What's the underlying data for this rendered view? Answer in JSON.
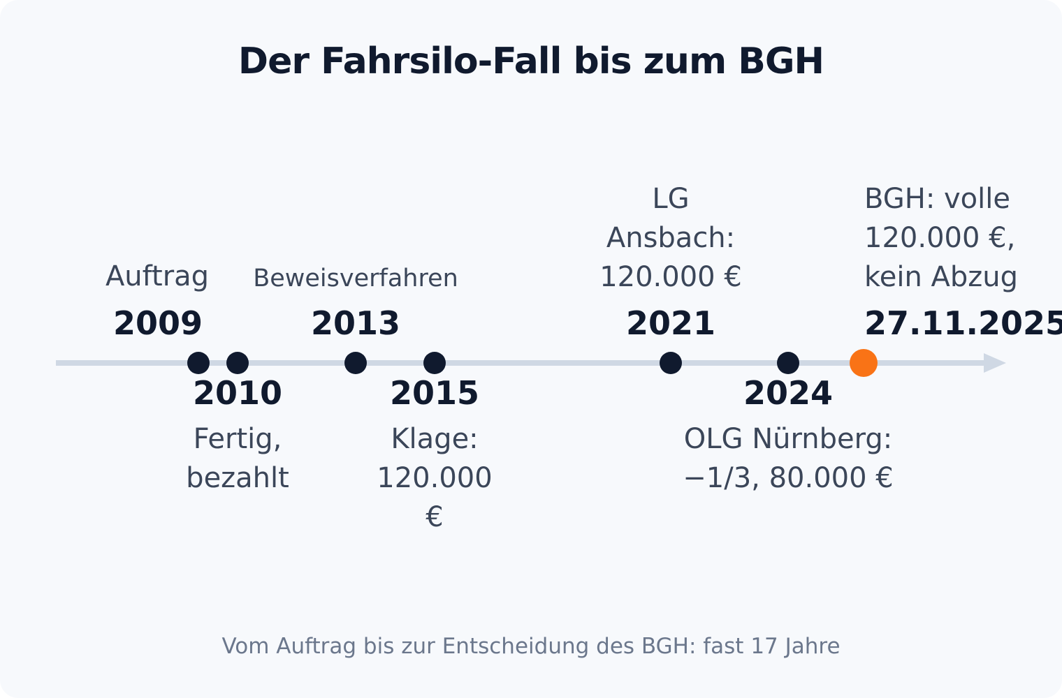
{
  "title": "Der Fahrsilo-Fall bis zum BGH",
  "footer": "Vom Auftrag bis zur Entscheidung des BGH: fast 17 Jahre",
  "colors": {
    "axis": "#cfd8e4",
    "dot": "#101a2e",
    "highlight": "#f97316",
    "background": "#f7f9fc"
  },
  "events": [
    {
      "year": "2009",
      "label": "Auftrag"
    },
    {
      "year": "2010",
      "label": "Fertig, bezahlt"
    },
    {
      "year": "2013",
      "label": "Beweisverfahren"
    },
    {
      "year": "2015",
      "label": "Klage: 120.000 €"
    },
    {
      "year": "2021",
      "label": "LG Ansbach: 120.000 €"
    },
    {
      "year": "2024",
      "label": "OLG Nürnberg: −1/3, 80.000 €"
    },
    {
      "year": "27.11.2025",
      "label": "BGH: volle 120.000 €, kein Abzug"
    }
  ]
}
